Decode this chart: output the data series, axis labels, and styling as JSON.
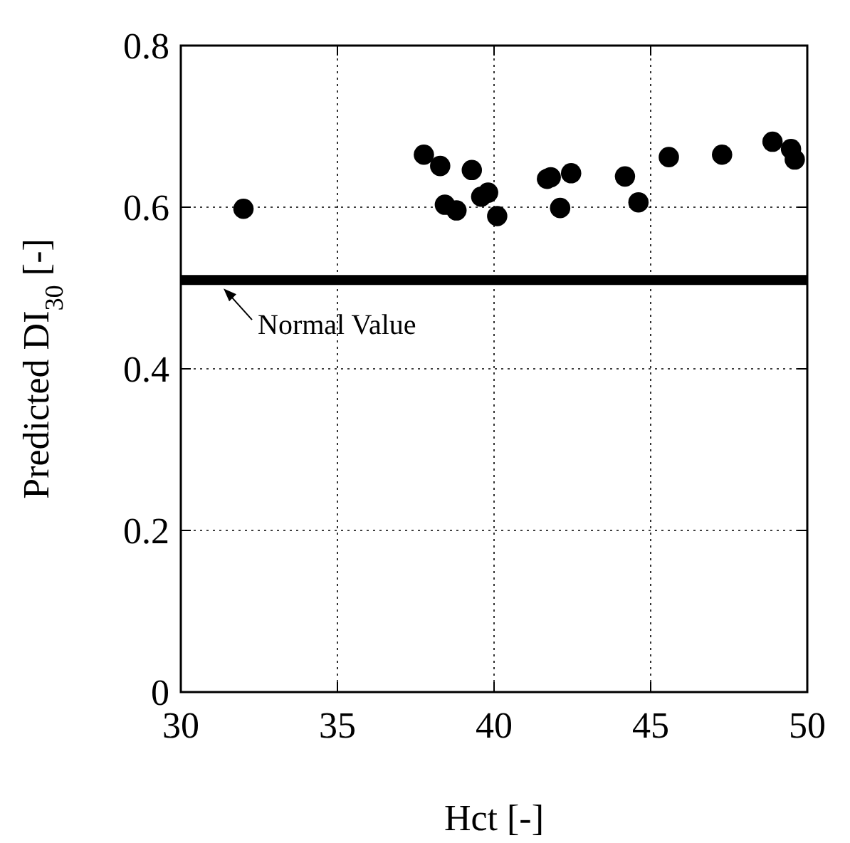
{
  "chart_data": {
    "type": "scatter",
    "xlabel": "Hct [-]",
    "ylabel": "Predicted DI$_{30}$ [-]",
    "x": [
      32.0,
      37.76,
      38.28,
      38.43,
      38.8,
      39.29,
      39.59,
      39.81,
      40.1,
      41.69,
      41.81,
      42.11,
      42.46,
      44.18,
      44.61,
      45.58,
      47.28,
      48.89,
      49.48,
      49.6
    ],
    "values": [
      0.598,
      0.665,
      0.651,
      0.603,
      0.596,
      0.646,
      0.613,
      0.618,
      0.589,
      0.635,
      0.637,
      0.599,
      0.642,
      0.638,
      0.606,
      0.662,
      0.665,
      0.681,
      0.672,
      0.659
    ],
    "color": "#000000",
    "marker": "circle",
    "xlim": [
      30,
      50
    ],
    "xticks": [
      30,
      35,
      40,
      45,
      50
    ],
    "ylim": [
      0,
      0.8
    ],
    "yticks": [
      0,
      0.2,
      0.4,
      0.6,
      0.8
    ],
    "grid": true,
    "ref_lines": [
      {
        "axis": "y",
        "value": 0.51,
        "label": "Normal Value",
        "color": "#000000"
      }
    ]
  }
}
